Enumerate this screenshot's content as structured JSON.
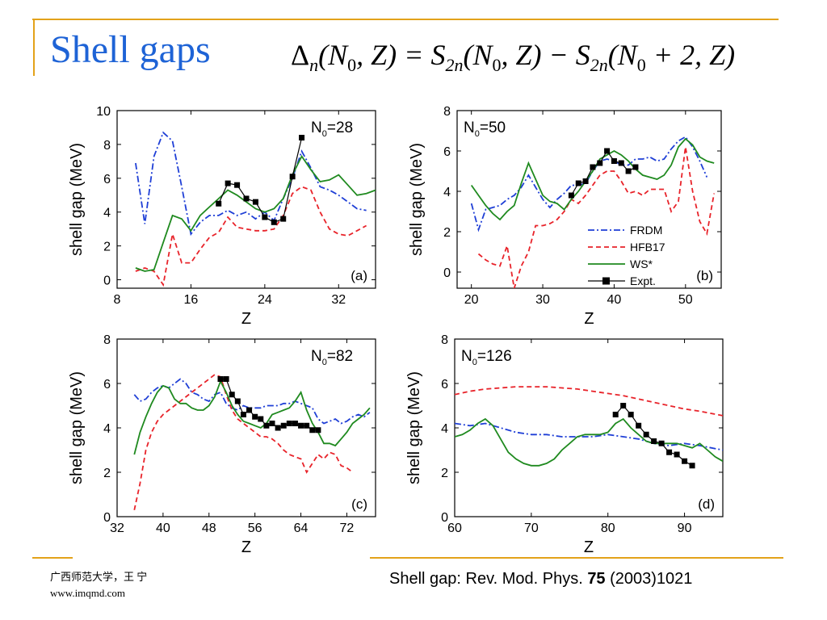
{
  "slide": {
    "title": "Shell gaps",
    "formula": {
      "delta": "Δ",
      "delta_sub": "n",
      "lhs_args": "(N",
      "lhs_sub": "0",
      "lhs_rest": ", Z) = S",
      "s_sub": "2n",
      "mid_args": "(N",
      "mid_sub": "0",
      "mid_rest": ", Z) − S",
      "s2_sub": "2n",
      "rhs_args": "(N",
      "rhs_sub": "0",
      "rhs_rest": " + 2, Z)"
    },
    "footer_left_line1": "广西师范大学，王 宁",
    "footer_left_line2": "www.imqmd.com",
    "footer_ref_pre": "Shell gap: Rev. Mod. Phys. ",
    "footer_ref_bold": "75",
    "footer_ref_post": " (2003)1021",
    "colors": {
      "accent": "#e3a21a",
      "title": "#1e63d6"
    }
  },
  "chart_data": [
    {
      "type": "line",
      "panel": "(a)",
      "label": "N0=28",
      "label_main": "N",
      "label_sub": "0",
      "label_rest": "=28",
      "xlabel": "Z",
      "ylabel": "shell gap (MeV)",
      "xlim": [
        8,
        36
      ],
      "ylim": [
        -0.5,
        10
      ],
      "xticks": [
        8,
        16,
        24,
        32
      ],
      "yticks": [
        0,
        2,
        4,
        6,
        8,
        10
      ],
      "series": [
        {
          "name": "FRDM",
          "color": "#1f3fd6",
          "dash": "8 3 2 3",
          "x": [
            10,
            11,
            12,
            13,
            14,
            15,
            16,
            17,
            18,
            19,
            20,
            21,
            22,
            23,
            24,
            25,
            26,
            27,
            28,
            29,
            30,
            31,
            32,
            33,
            34,
            35
          ],
          "y": [
            6.9,
            3.3,
            7.3,
            8.7,
            8.2,
            5.5,
            2.7,
            3.4,
            3.8,
            3.8,
            4.1,
            3.8,
            4.0,
            3.6,
            4.0,
            3.5,
            4.8,
            6.0,
            7.6,
            6.6,
            5.5,
            5.3,
            5.0,
            4.6,
            4.2,
            4.1
          ]
        },
        {
          "name": "HFB17",
          "color": "#e8232a",
          "dash": "6 4",
          "x": [
            10,
            11,
            12,
            13,
            14,
            15,
            16,
            17,
            18,
            19,
            20,
            21,
            22,
            23,
            24,
            25,
            26,
            27,
            28,
            29,
            30,
            31,
            32,
            33,
            34,
            35
          ],
          "y": [
            0.5,
            0.7,
            0.5,
            -0.3,
            2.7,
            1.0,
            1.0,
            1.8,
            2.5,
            2.8,
            3.7,
            3.1,
            3.0,
            2.9,
            2.9,
            3.0,
            3.8,
            5.1,
            5.5,
            5.3,
            4.0,
            3.0,
            2.7,
            2.6,
            2.9,
            3.2
          ]
        },
        {
          "name": "WS*",
          "color": "#1f8a1f",
          "dash": "",
          "x": [
            10,
            11,
            12,
            13,
            14,
            15,
            16,
            17,
            18,
            19,
            20,
            21,
            22,
            23,
            24,
            25,
            26,
            27,
            28,
            29,
            30,
            31,
            32,
            33,
            34,
            35,
            36
          ],
          "y": [
            0.7,
            0.5,
            0.6,
            2.2,
            3.8,
            3.6,
            2.9,
            3.8,
            4.3,
            4.8,
            5.3,
            5.0,
            4.6,
            4.2,
            4.0,
            4.2,
            4.8,
            6.2,
            7.3,
            6.5,
            5.8,
            5.9,
            6.2,
            5.6,
            5.0,
            5.1,
            5.3
          ]
        },
        {
          "name": "Expt.",
          "color": "#000000",
          "dash": "",
          "marker": "square",
          "x": [
            19,
            20,
            21,
            22,
            23,
            24,
            25,
            26,
            27,
            28
          ],
          "y": [
            4.5,
            5.7,
            5.6,
            4.8,
            4.6,
            3.7,
            3.4,
            3.6,
            6.1,
            8.4
          ]
        }
      ]
    },
    {
      "type": "line",
      "panel": "(b)",
      "label": "N0=50",
      "label_main": "N",
      "label_sub": "0",
      "label_rest": "=50",
      "xlabel": "Z",
      "ylabel": "shell gap (MeV)",
      "xlim": [
        18,
        55
      ],
      "ylim": [
        -0.8,
        8
      ],
      "xticks": [
        20,
        30,
        40,
        50
      ],
      "yticks": [
        0,
        2,
        4,
        6,
        8
      ],
      "legend": {
        "placement": "lower-right",
        "entries": [
          "FRDM",
          "HFB17",
          "WS*",
          "Expt."
        ]
      },
      "series": [
        {
          "name": "FRDM",
          "color": "#1f3fd6",
          "dash": "8 3 2 3",
          "x": [
            20,
            21,
            22,
            23,
            24,
            25,
            26,
            27,
            28,
            29,
            30,
            31,
            32,
            33,
            34,
            35,
            36,
            37,
            38,
            39,
            40,
            41,
            42,
            43,
            44,
            45,
            46,
            47,
            48,
            49,
            50,
            51,
            52,
            53
          ],
          "y": [
            3.4,
            2.1,
            3.1,
            3.2,
            3.3,
            3.6,
            3.8,
            4.2,
            4.8,
            4.2,
            3.6,
            3.2,
            3.6,
            3.9,
            4.3,
            4.3,
            4.4,
            5.0,
            5.5,
            5.6,
            5.5,
            5.3,
            5.3,
            5.6,
            5.6,
            5.7,
            5.5,
            5.6,
            6.1,
            6.5,
            6.7,
            6.2,
            5.5,
            4.7
          ]
        },
        {
          "name": "HFB17",
          "color": "#e8232a",
          "dash": "6 4",
          "x": [
            21,
            22,
            23,
            24,
            25,
            26,
            27,
            28,
            29,
            30,
            31,
            32,
            33,
            34,
            35,
            36,
            37,
            38,
            39,
            40,
            41,
            42,
            43,
            44,
            45,
            46,
            47,
            48,
            49,
            50,
            51,
            52,
            53,
            54
          ],
          "y": [
            0.9,
            0.6,
            0.4,
            0.3,
            1.3,
            -0.8,
            0.3,
            1.0,
            2.3,
            2.3,
            2.4,
            2.6,
            3.0,
            3.6,
            3.4,
            3.8,
            4.3,
            4.8,
            5.0,
            5.0,
            4.5,
            3.9,
            4.0,
            3.8,
            4.1,
            4.1,
            4.1,
            3.0,
            3.5,
            6.2,
            4.0,
            2.5,
            1.9,
            3.9
          ]
        },
        {
          "name": "WS*",
          "color": "#1f8a1f",
          "dash": "",
          "x": [
            20,
            21,
            22,
            23,
            24,
            25,
            26,
            27,
            28,
            29,
            30,
            31,
            32,
            33,
            34,
            35,
            36,
            37,
            38,
            39,
            40,
            41,
            42,
            43,
            44,
            45,
            46,
            47,
            48,
            49,
            50,
            51,
            52,
            53,
            54
          ],
          "y": [
            4.3,
            3.8,
            3.3,
            2.9,
            2.6,
            3.0,
            3.3,
            4.4,
            5.4,
            4.6,
            3.8,
            3.5,
            3.4,
            3.1,
            3.6,
            4.0,
            4.5,
            5.0,
            5.6,
            5.8,
            6.0,
            5.8,
            5.5,
            5.1,
            4.8,
            4.7,
            4.6,
            4.8,
            5.3,
            6.2,
            6.6,
            6.3,
            5.7,
            5.5,
            5.4
          ]
        },
        {
          "name": "Expt.",
          "color": "#000000",
          "dash": "",
          "marker": "square",
          "x": [
            34,
            35,
            36,
            37,
            38,
            39,
            40,
            41,
            42,
            43
          ],
          "y": [
            3.8,
            4.4,
            4.5,
            5.2,
            5.4,
            6.0,
            5.5,
            5.4,
            5.0,
            5.2
          ]
        }
      ]
    },
    {
      "type": "line",
      "panel": "(c)",
      "label": "N0=82",
      "label_main": "N",
      "label_sub": "0",
      "label_rest": "=82",
      "xlabel": "Z",
      "ylabel": "shell gap (MeV)",
      "xlim": [
        32,
        77
      ],
      "ylim": [
        0,
        8
      ],
      "xticks": [
        32,
        40,
        48,
        56,
        64,
        72
      ],
      "yticks": [
        0,
        2,
        4,
        6,
        8
      ],
      "series": [
        {
          "name": "FRDM",
          "color": "#1f3fd6",
          "dash": "8 3 2 3",
          "x": [
            35,
            36,
            37,
            38,
            39,
            40,
            41,
            42,
            43,
            44,
            45,
            46,
            47,
            48,
            49,
            50,
            51,
            52,
            53,
            54,
            55,
            56,
            57,
            58,
            59,
            60,
            61,
            62,
            63,
            64,
            65,
            66,
            67,
            68,
            69,
            70,
            71,
            72,
            73,
            74,
            75,
            76
          ],
          "y": [
            5.5,
            5.2,
            5.3,
            5.6,
            5.8,
            5.9,
            5.8,
            6.0,
            6.2,
            6.0,
            5.6,
            5.5,
            5.3,
            5.2,
            5.5,
            5.6,
            5.1,
            4.9,
            4.8,
            5.0,
            4.9,
            4.9,
            4.9,
            5.0,
            5.0,
            5.0,
            5.1,
            5.1,
            5.2,
            5.1,
            5.0,
            4.9,
            4.4,
            4.2,
            4.3,
            4.4,
            4.2,
            4.3,
            4.5,
            4.6,
            4.5,
            4.7
          ]
        },
        {
          "name": "HFB17",
          "color": "#e8232a",
          "dash": "6 4",
          "x": [
            35,
            36,
            37,
            38,
            39,
            40,
            41,
            42,
            43,
            44,
            45,
            46,
            47,
            48,
            49,
            50,
            51,
            52,
            53,
            54,
            55,
            56,
            57,
            58,
            59,
            60,
            61,
            62,
            63,
            64,
            65,
            66,
            67,
            68,
            69,
            70,
            71,
            72,
            73
          ],
          "y": [
            0.3,
            1.5,
            3.0,
            3.8,
            4.3,
            4.6,
            4.8,
            5.0,
            5.2,
            5.4,
            5.6,
            5.8,
            6.0,
            6.2,
            6.4,
            6.3,
            5.5,
            4.8,
            4.4,
            4.2,
            4.0,
            3.8,
            3.6,
            3.6,
            3.5,
            3.3,
            3.0,
            2.8,
            2.7,
            2.6,
            2.0,
            2.4,
            2.8,
            2.6,
            2.9,
            2.8,
            2.3,
            2.2,
            2.0
          ]
        },
        {
          "name": "WS*",
          "color": "#1f8a1f",
          "dash": "",
          "x": [
            35,
            36,
            37,
            38,
            39,
            40,
            41,
            42,
            43,
            44,
            45,
            46,
            47,
            48,
            49,
            50,
            51,
            52,
            53,
            54,
            55,
            56,
            57,
            58,
            59,
            60,
            61,
            62,
            63,
            64,
            65,
            66,
            67,
            68,
            69,
            70,
            71,
            72,
            73,
            74,
            75,
            76
          ],
          "y": [
            2.8,
            3.8,
            4.5,
            5.1,
            5.6,
            5.9,
            5.8,
            5.3,
            5.1,
            5.1,
            4.9,
            4.8,
            4.8,
            5.0,
            5.4,
            6.1,
            5.6,
            5.0,
            4.6,
            4.3,
            4.2,
            4.1,
            4.0,
            4.2,
            4.6,
            4.7,
            4.8,
            4.9,
            5.2,
            5.6,
            4.8,
            4.2,
            3.8,
            3.3,
            3.3,
            3.2,
            3.5,
            3.8,
            4.2,
            4.4,
            4.6,
            4.9
          ]
        },
        {
          "name": "Expt.",
          "color": "#000000",
          "dash": "",
          "marker": "square",
          "x": [
            50,
            51,
            52,
            53,
            54,
            55,
            56,
            57,
            58,
            59,
            60,
            61,
            62,
            63,
            64,
            65,
            66,
            67
          ],
          "y": [
            6.2,
            6.2,
            5.5,
            5.2,
            4.6,
            4.8,
            4.5,
            4.4,
            4.1,
            4.2,
            4.0,
            4.1,
            4.2,
            4.2,
            4.1,
            4.1,
            3.9,
            3.9
          ]
        }
      ]
    },
    {
      "type": "line",
      "panel": "(d)",
      "label": "N0=126",
      "label_main": "N",
      "label_sub": "0",
      "label_rest": "=126",
      "xlabel": "Z",
      "ylabel": "shell gap (MeV)",
      "xlim": [
        60,
        95
      ],
      "ylim": [
        0,
        8
      ],
      "xticks": [
        60,
        70,
        80,
        90
      ],
      "yticks": [
        0,
        2,
        4,
        6,
        8
      ],
      "series": [
        {
          "name": "FRDM",
          "color": "#1f3fd6",
          "dash": "8 3 2 3",
          "x": [
            60,
            62,
            64,
            66,
            68,
            70,
            72,
            74,
            76,
            78,
            80,
            82,
            84,
            86,
            88,
            90,
            92,
            95
          ],
          "y": [
            4.2,
            4.1,
            4.2,
            4.0,
            3.8,
            3.7,
            3.7,
            3.6,
            3.6,
            3.6,
            3.7,
            3.6,
            3.5,
            3.3,
            3.2,
            3.3,
            3.2,
            3.0
          ]
        },
        {
          "name": "HFB17",
          "color": "#e8232a",
          "dash": "6 4",
          "x": [
            60,
            62,
            64,
            66,
            68,
            70,
            72,
            74,
            76,
            78,
            80,
            82,
            84,
            86,
            88,
            90,
            92,
            95
          ],
          "y": [
            5.5,
            5.65,
            5.75,
            5.8,
            5.85,
            5.85,
            5.85,
            5.8,
            5.75,
            5.65,
            5.55,
            5.45,
            5.3,
            5.15,
            5.0,
            4.85,
            4.75,
            4.55
          ]
        },
        {
          "name": "WS*",
          "color": "#1f8a1f",
          "dash": "",
          "x": [
            60,
            61,
            62,
            63,
            64,
            65,
            66,
            67,
            68,
            69,
            70,
            71,
            72,
            73,
            74,
            75,
            76,
            77,
            78,
            79,
            80,
            81,
            82,
            83,
            84,
            85,
            86,
            87,
            88,
            89,
            90,
            91,
            92,
            93,
            94,
            95
          ],
          "y": [
            3.6,
            3.7,
            3.9,
            4.2,
            4.4,
            4.1,
            3.5,
            2.9,
            2.6,
            2.4,
            2.3,
            2.3,
            2.4,
            2.6,
            3.0,
            3.3,
            3.6,
            3.7,
            3.7,
            3.7,
            3.8,
            4.2,
            4.4,
            4.0,
            3.7,
            3.4,
            3.3,
            3.3,
            3.3,
            3.3,
            3.2,
            3.1,
            3.3,
            3.0,
            2.7,
            2.5
          ]
        },
        {
          "name": "Expt.",
          "color": "#000000",
          "dash": "",
          "marker": "square",
          "x": [
            81,
            82,
            83,
            84,
            85,
            86,
            87,
            88,
            89,
            90,
            91
          ],
          "y": [
            4.6,
            5.0,
            4.6,
            4.1,
            3.7,
            3.4,
            3.3,
            2.9,
            2.8,
            2.5,
            2.3
          ]
        }
      ]
    }
  ]
}
